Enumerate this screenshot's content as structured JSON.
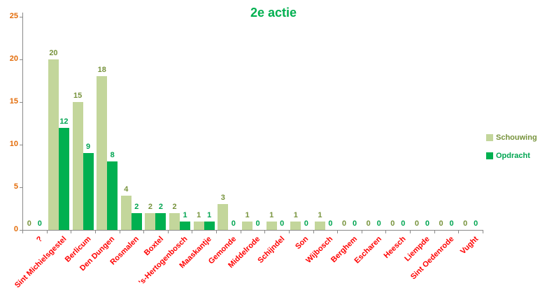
{
  "chart_data": {
    "type": "bar",
    "title": "2e actie",
    "title_color": "#00B050",
    "categories": [
      "?",
      "Sint Michielsgestel",
      "Berlicum",
      "Den Dungen",
      "Rosmalen",
      "Boxtel",
      "'s-Hertogenbosch",
      "Maaskantje",
      "Gemonde",
      "Middelrode",
      "Schijndel",
      "Son",
      "Wijbosch",
      "Berghem",
      "Escharen",
      "Heesch",
      "Liempde",
      "Sint Oedenrode",
      "Vught"
    ],
    "series": [
      {
        "name": "Schouwing",
        "color": "#C3D69B",
        "label_color": "#77933C",
        "values": [
          0,
          20,
          15,
          18,
          4,
          2,
          2,
          1,
          3,
          1,
          1,
          1,
          1,
          0,
          0,
          0,
          0,
          0,
          0
        ]
      },
      {
        "name": "Opdracht",
        "color": "#00B050",
        "label_color": "#00A551",
        "values": [
          0,
          12,
          9,
          8,
          2,
          2,
          1,
          1,
          0,
          0,
          0,
          0,
          0,
          0,
          0,
          0,
          0,
          0,
          0
        ]
      }
    ],
    "ylim": [
      0,
      25
    ],
    "yticks": [
      0,
      5,
      10,
      15,
      20,
      25
    ],
    "ytick_color": "#E36C09",
    "xtick_color": "#FF0000",
    "axis_color": "#898989",
    "grid": false,
    "legend_position": "right",
    "data_labels": true
  }
}
